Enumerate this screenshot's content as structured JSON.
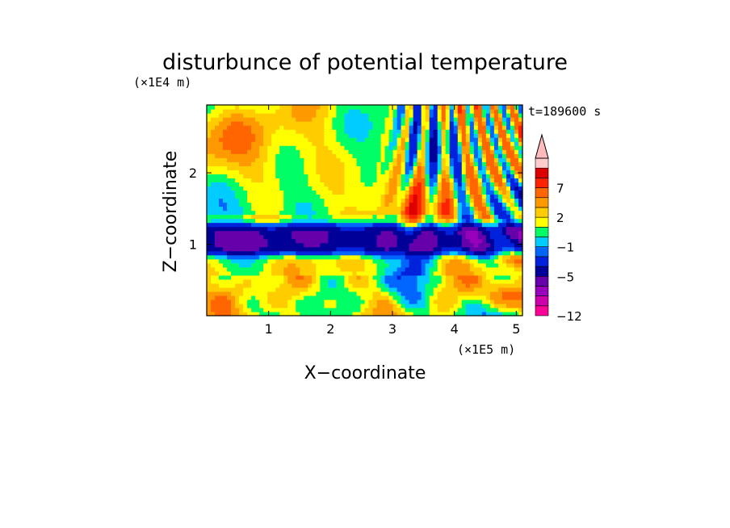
{
  "chart_data": {
    "type": "heatmap",
    "title": "disturbunce of potential temperature",
    "xlabel": "X−coordinate",
    "ylabel": "Z−coordinate",
    "x_scale_label": "(×1E5 m)",
    "y_scale_label": "(×1E4 m)",
    "time_label": "t=189600 s",
    "xlim": [
      0,
      5.1
    ],
    "ylim": [
      0,
      2.95
    ],
    "x_ticks": [
      {
        "value": 1,
        "label": "1"
      },
      {
        "value": 2,
        "label": "2"
      },
      {
        "value": 3,
        "label": "3"
      },
      {
        "value": 4,
        "label": "4"
      },
      {
        "value": 5,
        "label": "5"
      }
    ],
    "y_ticks": [
      {
        "value": 1,
        "label": "1"
      },
      {
        "value": 2,
        "label": "2"
      }
    ],
    "colorbar": {
      "levels": [
        -12,
        -11,
        -9,
        -7,
        -5,
        -3,
        -2,
        -1,
        0,
        1,
        2,
        3,
        5,
        7,
        9,
        12
      ],
      "colors": [
        "#ff0099",
        "#cc00aa",
        "#9900bb",
        "#6600aa",
        "#000099",
        "#0022dd",
        "#0066ff",
        "#00ccff",
        "#00ff66",
        "#ffff00",
        "#ffcc00",
        "#ff9900",
        "#ff6600",
        "#ff2200",
        "#dd0000",
        "#ffcccc",
        "#ffbbbb"
      ],
      "tick_labels": [
        {
          "value": -12,
          "label": "−12"
        },
        {
          "value": -5,
          "label": "−5"
        },
        {
          "value": -1,
          "label": "−1"
        },
        {
          "value": 2,
          "label": "2"
        },
        {
          "value": 7,
          "label": "7"
        }
      ],
      "extend": "max"
    },
    "field_description": {
      "background_level": 0.5,
      "cold_band_z_range": [
        0.8,
        1.35
      ],
      "cold_band_value": -4,
      "wave_region_x_range": [
        2.8,
        5.1
      ]
    }
  }
}
